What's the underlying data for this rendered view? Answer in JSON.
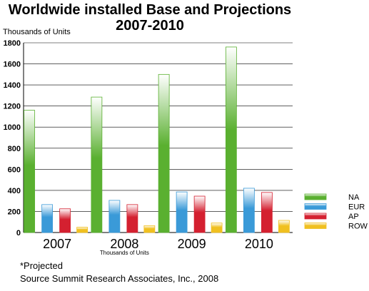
{
  "chart_data": {
    "type": "bar",
    "title": "Worldwide installed Base and Projections",
    "subtitle": "2007-2010",
    "ylabel": "Thousands of Units",
    "xlabel": "Thousands of Units",
    "categories": [
      "2007",
      "2008",
      "2009",
      "2010"
    ],
    "ylim": [
      0,
      1800
    ],
    "yticks": [
      0,
      200,
      400,
      600,
      800,
      1000,
      1200,
      1400,
      1600,
      1800
    ],
    "grid": true,
    "legend_position": "right",
    "series": [
      {
        "name": "NA",
        "values": [
          1160,
          1285,
          1500,
          1760
        ],
        "color": "#5ab030"
      },
      {
        "name": "EUR",
        "values": [
          265,
          305,
          385,
          420
        ],
        "color": "#3a9ad8"
      },
      {
        "name": "AP",
        "values": [
          225,
          265,
          345,
          380
        ],
        "color": "#d42030"
      },
      {
        "name": "ROW",
        "values": [
          50,
          65,
          90,
          115
        ],
        "color": "#f0c020"
      }
    ]
  },
  "footnotes": {
    "projected": "*Projected",
    "source": "Source Summit Research Associates, Inc., 2008"
  }
}
